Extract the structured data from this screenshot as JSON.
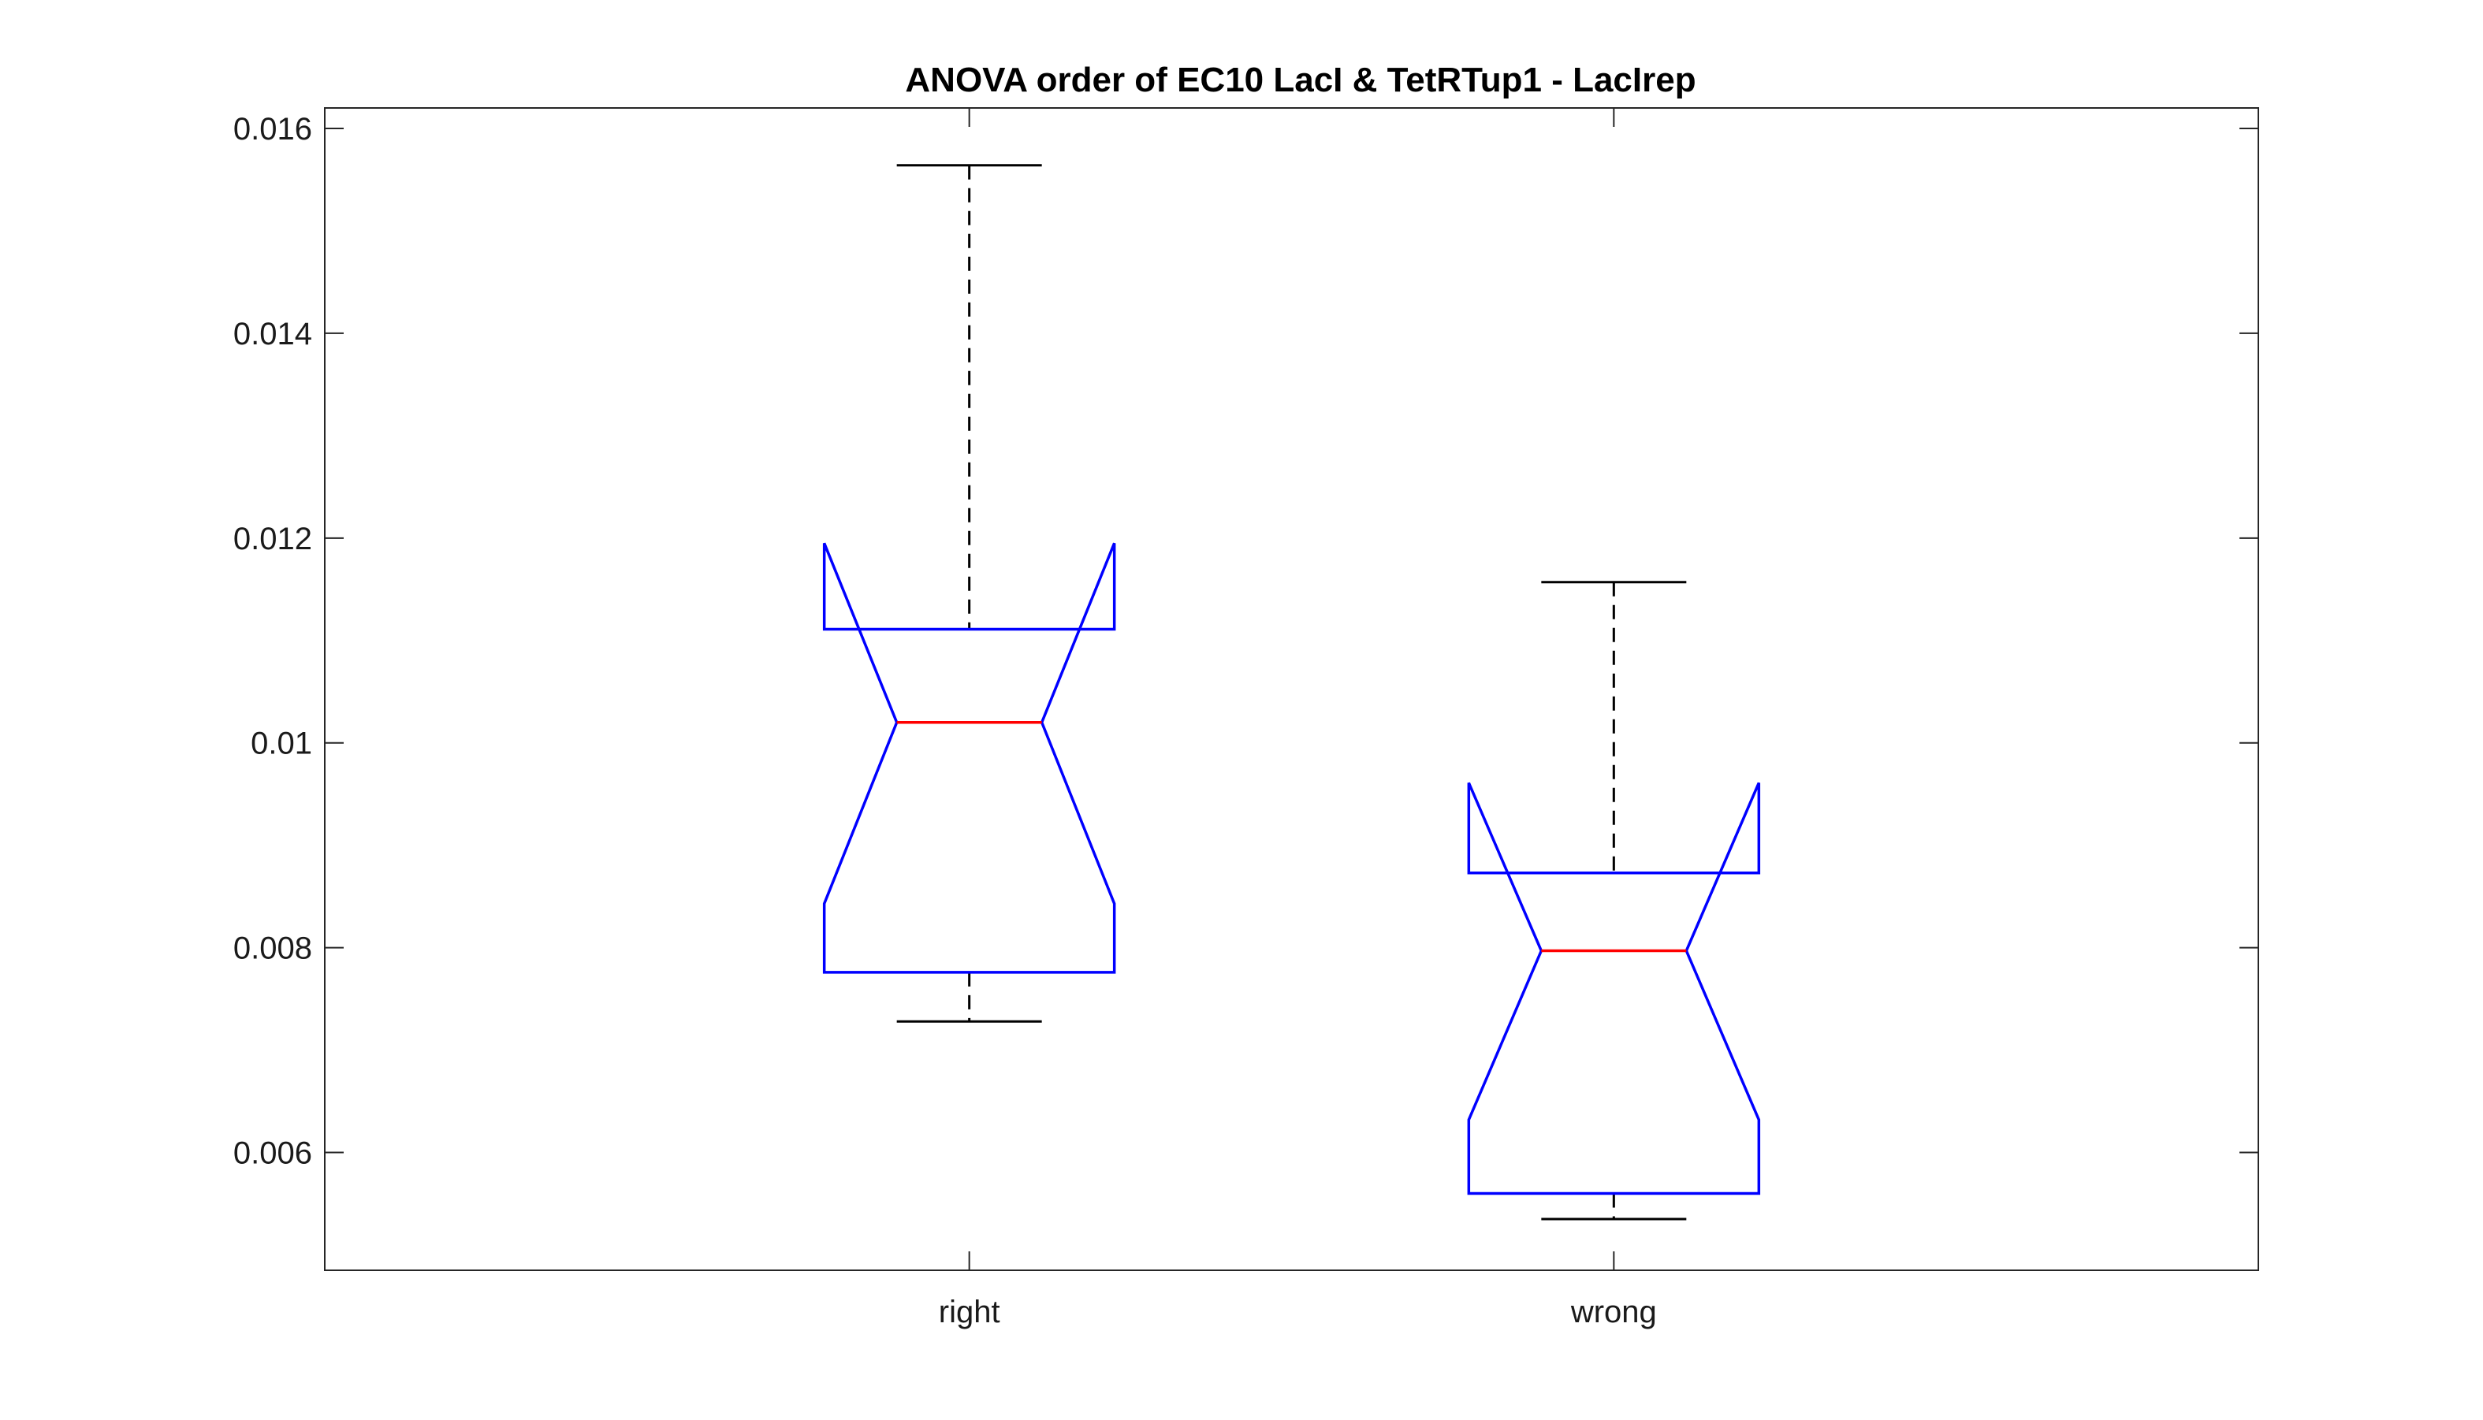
{
  "chart_data": {
    "type": "boxplot",
    "title": "ANOVA order of EC10 LacI & TetRTup1 - LacIrep",
    "xlabel": "",
    "ylabel": "",
    "ylim": [
      0.00485,
      0.0162
    ],
    "yticks": [
      0.006,
      0.008,
      0.01,
      0.012,
      0.014,
      0.016
    ],
    "ytick_labels": [
      "0.006",
      "0.008",
      "0.01",
      "0.012",
      "0.014",
      "0.016"
    ],
    "categories": [
      "right",
      "wrong"
    ],
    "notched": true,
    "grid": false,
    "colors": {
      "box": "#0000ff",
      "median": "#ff0000",
      "whisker": "#000000",
      "axes": "#262626"
    },
    "boxes": [
      {
        "label": "right",
        "whisker_low": 0.00728,
        "q1": 0.00776,
        "median": 0.0102,
        "q3": 0.01111,
        "whisker_high": 0.01564,
        "notch_low": 0.00843,
        "notch_high": 0.01195
      },
      {
        "label": "wrong",
        "whisker_low": 0.00535,
        "q1": 0.0056,
        "median": 0.00797,
        "q3": 0.00873,
        "whisker_high": 0.01157,
        "notch_low": 0.00632,
        "notch_high": 0.00961
      }
    ]
  }
}
